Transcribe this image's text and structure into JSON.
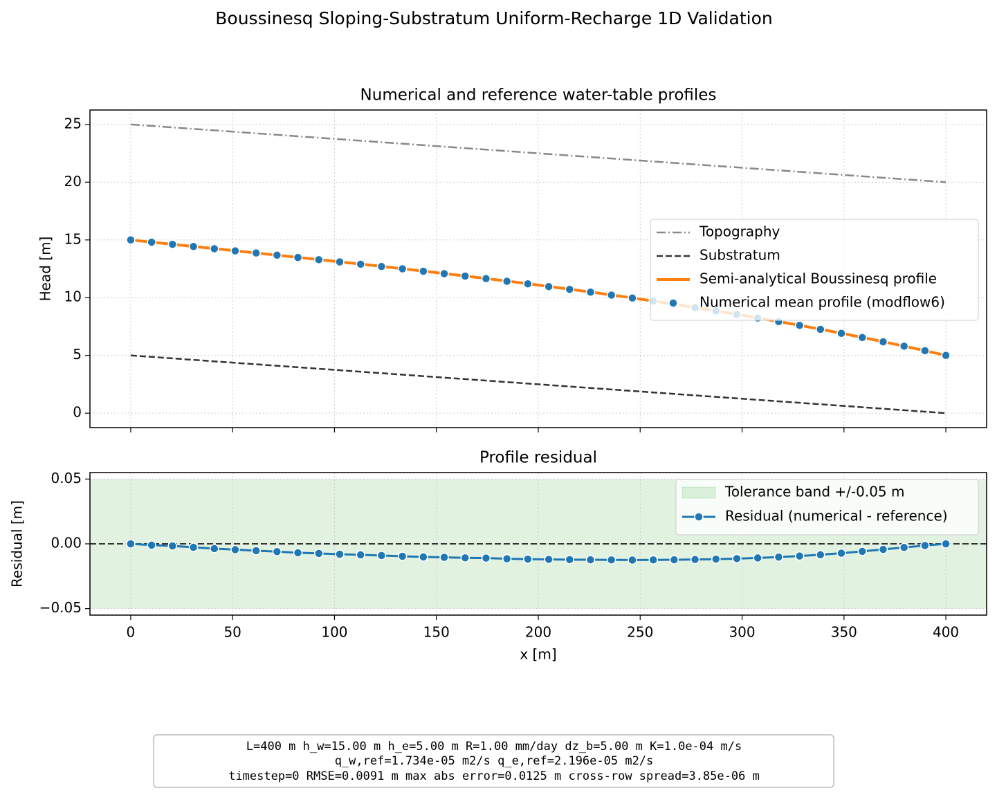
{
  "title": "Boussinesq Sloping-Substratum Uniform-Recharge 1D Validation",
  "note": [
    "L=400 m   h_w=15.00 m   h_e=5.00 m   R=1.00 mm/day   dz_b=5.00 m   K=1.0e-04 m/s",
    "q_w,ref=1.734e-05 m2/s   q_e,ref=2.196e-05 m2/s",
    "timestep=0   RMSE=0.0091 m   max abs error=0.0125 m   cross-row spread=3.85e-06 m"
  ],
  "chart_data": [
    {
      "type": "line",
      "title": "Numerical and reference water-table profiles",
      "ylabel": "Head [m]",
      "xlim": [
        -20,
        420
      ],
      "xticks": [
        0,
        50,
        100,
        150,
        200,
        250,
        300,
        350,
        400
      ],
      "xtick_labels": false,
      "ylim": [
        -1.25,
        26.25
      ],
      "yticks": [
        0,
        5,
        10,
        15,
        20,
        25
      ],
      "grid": true,
      "legend": "center right",
      "x": [
        0,
        10.26,
        20.51,
        30.77,
        41.03,
        51.28,
        61.54,
        71.79,
        82.05,
        92.31,
        102.56,
        112.82,
        123.08,
        133.33,
        143.59,
        153.85,
        164.1,
        174.36,
        184.62,
        194.87,
        205.13,
        215.38,
        225.64,
        235.9,
        246.15,
        256.41,
        266.67,
        276.92,
        287.18,
        297.44,
        307.69,
        317.95,
        328.21,
        338.46,
        348.72,
        358.97,
        369.23,
        379.49,
        389.74,
        400
      ],
      "series": [
        {
          "name": "Topography",
          "color": "#888888",
          "line": "dashdot",
          "marker": false,
          "x": [
            0,
            400
          ],
          "values": [
            25,
            20
          ]
        },
        {
          "name": "Substratum",
          "color": "#333333",
          "line": "dashed",
          "marker": false,
          "x": [
            0,
            400
          ],
          "values": [
            5,
            0
          ]
        },
        {
          "name": "Semi-analytical Boussinesq profile",
          "color": "#ff7f0e",
          "line": "solid",
          "marker": false,
          "values": [
            15.0,
            14.81,
            14.62,
            14.43,
            14.25,
            14.06,
            13.87,
            13.68,
            13.49,
            13.3,
            13.1,
            12.91,
            12.71,
            12.51,
            12.3,
            12.09,
            11.88,
            11.66,
            11.44,
            11.21,
            10.97,
            10.73,
            10.49,
            10.24,
            9.98,
            9.71,
            9.43,
            9.15,
            8.86,
            8.56,
            8.25,
            7.93,
            7.61,
            7.27,
            6.92,
            6.56,
            6.19,
            5.8,
            5.41,
            5.0
          ]
        },
        {
          "name": "Numerical mean profile (modflow6)",
          "color": "#1f77b4",
          "line": "none",
          "marker": true,
          "values": [
            15.0,
            14.81,
            14.62,
            14.43,
            14.24,
            14.05,
            13.87,
            13.68,
            13.48,
            13.29,
            13.1,
            12.9,
            12.7,
            12.5,
            12.29,
            12.08,
            11.87,
            11.65,
            11.42,
            11.2,
            10.96,
            10.72,
            10.48,
            10.22,
            9.97,
            9.7,
            9.42,
            9.14,
            8.85,
            8.55,
            8.24,
            7.93,
            7.6,
            7.26,
            6.91,
            6.55,
            6.18,
            5.8,
            5.41,
            5.0
          ]
        }
      ]
    },
    {
      "type": "line",
      "title": "Profile residual",
      "xlabel": "x [m]",
      "ylabel": "Residual [m]",
      "xlim": [
        -20,
        420
      ],
      "xticks": [
        0,
        50,
        100,
        150,
        200,
        250,
        300,
        350,
        400
      ],
      "xtick_labels": true,
      "ylim": [
        -0.055,
        0.055
      ],
      "yticks": [
        {
          "value": -0.05,
          "label": "−0.05"
        },
        {
          "value": 0,
          "label": "0.00"
        },
        {
          "value": 0.05,
          "label": "0.05"
        }
      ],
      "grid": true,
      "legend": "upper right",
      "reference_line": 0,
      "band": {
        "name": "Tolerance band +/-0.05 m",
        "color": "#2ca02c",
        "values": [
          -0.05,
          0.05
        ]
      },
      "x": [
        0,
        10.26,
        20.51,
        30.77,
        41.03,
        51.28,
        61.54,
        71.79,
        82.05,
        92.31,
        102.56,
        112.82,
        123.08,
        133.33,
        143.59,
        153.85,
        164.1,
        174.36,
        184.62,
        194.87,
        205.13,
        215.38,
        225.64,
        235.9,
        246.15,
        256.41,
        266.67,
        276.92,
        287.18,
        297.44,
        307.69,
        317.95,
        328.21,
        338.46,
        348.72,
        358.97,
        369.23,
        379.49,
        389.74,
        400
      ],
      "series": [
        {
          "name": "Residual (numerical - reference)",
          "color": "#1f77b4",
          "line": "solid",
          "marker": true,
          "values": [
            0,
            -0.001,
            -0.0016,
            -0.0027,
            -0.0037,
            -0.0045,
            -0.0053,
            -0.006,
            -0.0069,
            -0.0074,
            -0.008,
            -0.0085,
            -0.009,
            -0.0096,
            -0.0101,
            -0.0104,
            -0.0108,
            -0.011,
            -0.0115,
            -0.0118,
            -0.012,
            -0.0122,
            -0.0123,
            -0.0124,
            -0.0125,
            -0.0124,
            -0.0123,
            -0.0121,
            -0.0118,
            -0.0114,
            -0.0109,
            -0.0102,
            -0.0094,
            -0.0084,
            -0.0072,
            -0.0058,
            -0.0043,
            -0.0028,
            -0.0013,
            0
          ]
        }
      ]
    }
  ]
}
